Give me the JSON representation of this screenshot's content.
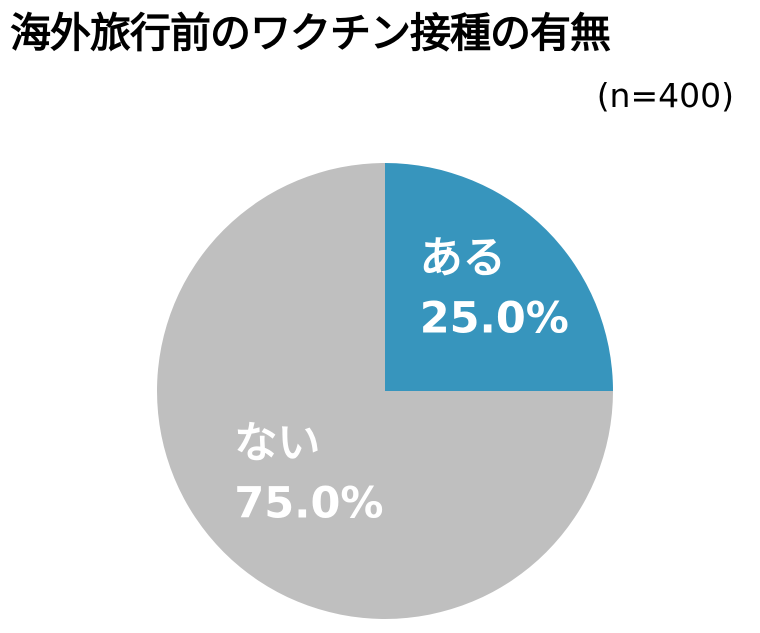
{
  "chart_data": {
    "type": "pie",
    "title": "海外旅行前のワクチン接種の有無",
    "subtitle": "(n=400)",
    "start_angle_deg": 0,
    "direction": "clockwise",
    "slices": [
      {
        "name": "ある",
        "value": 25.0,
        "value_label": "25.0%",
        "color": "#3795bd"
      },
      {
        "name": "ない",
        "value": 75.0,
        "value_label": "75.0%",
        "color": "#bfbfbf"
      }
    ],
    "legend": "none",
    "labels_inside": true
  }
}
